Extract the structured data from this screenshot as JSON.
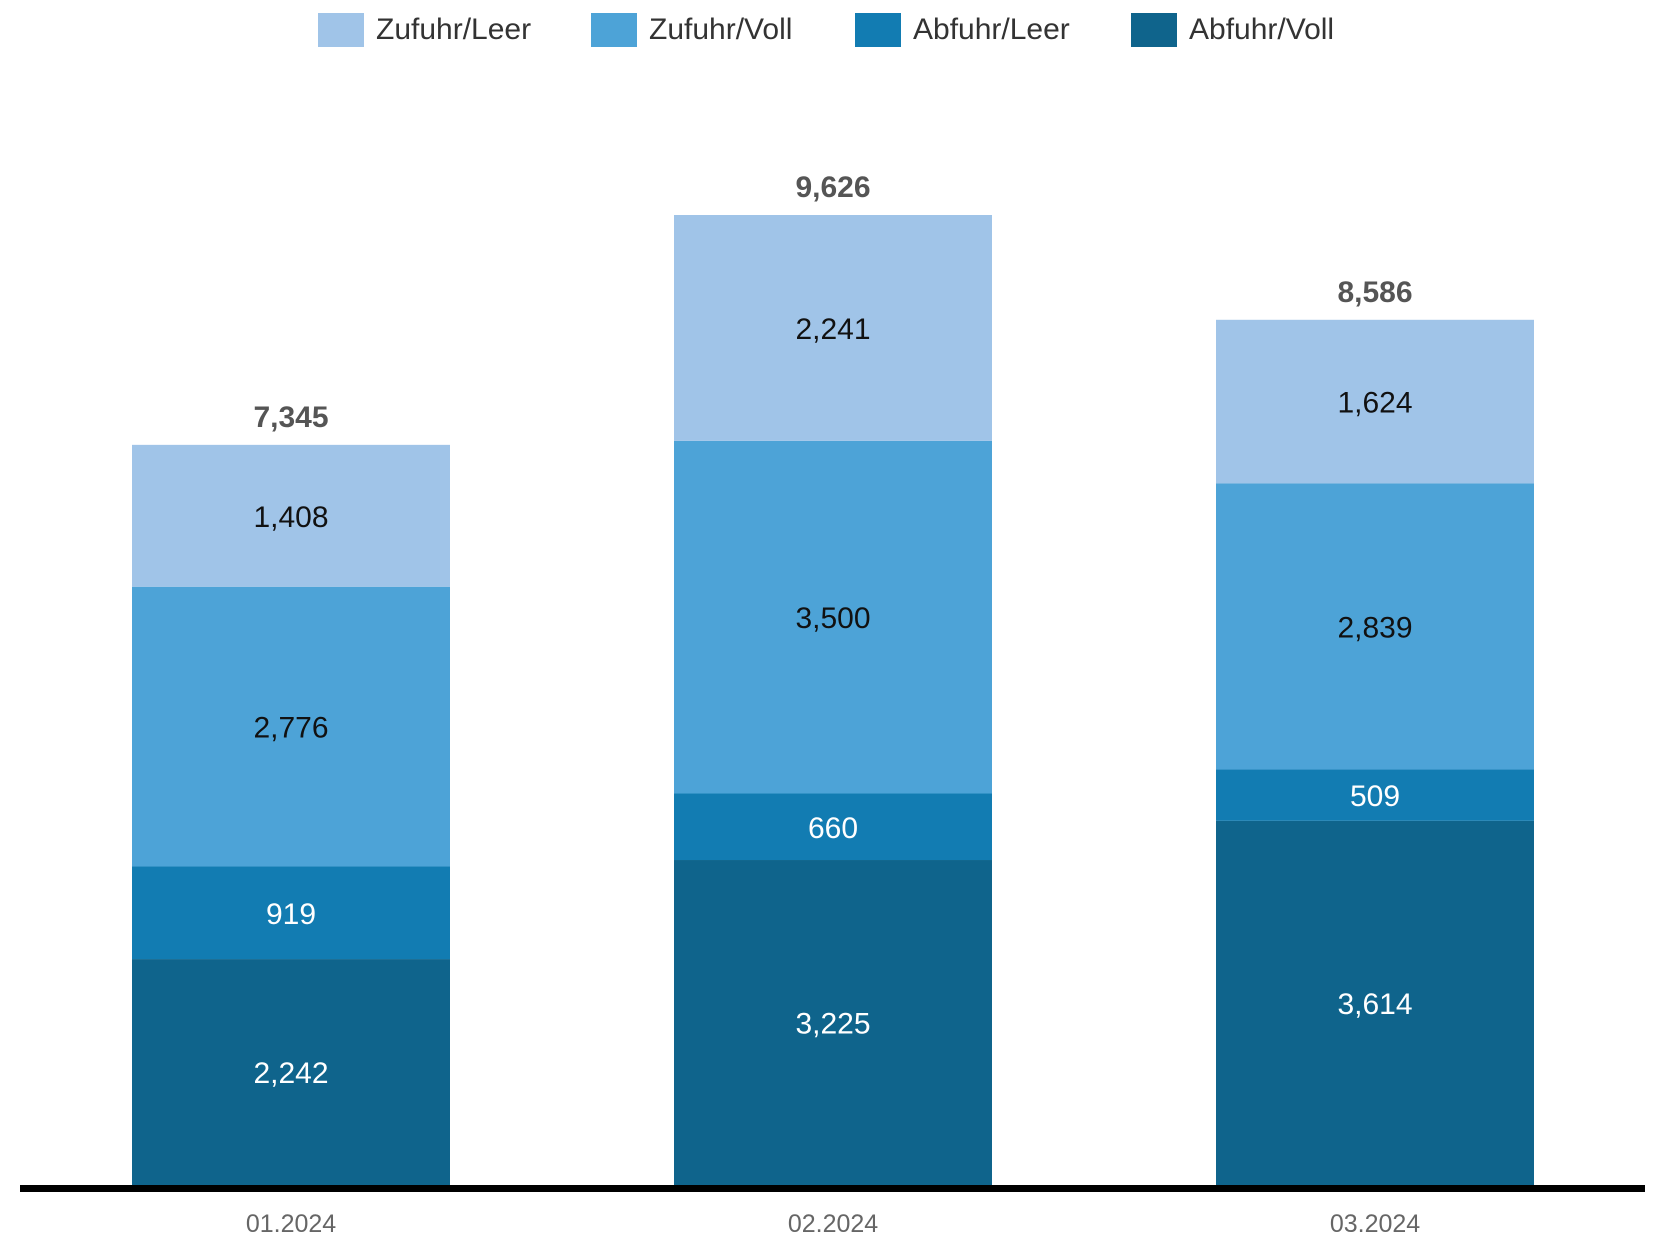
{
  "chart_data": {
    "type": "bar",
    "stacked": true,
    "categories": [
      "01.2024",
      "02.2024",
      "03.2024"
    ],
    "series": [
      {
        "name": "Abfuhr/Voll",
        "color": "#0F648C",
        "label_color": "#ffffff",
        "values": [
          2242,
          3225,
          3614
        ],
        "labels": [
          "2,242",
          "3,225",
          "3,614"
        ]
      },
      {
        "name": "Abfuhr/Leer",
        "color": "#127CB2",
        "label_color": "#ffffff",
        "values": [
          919,
          660,
          509
        ],
        "labels": [
          "919",
          "660",
          "509"
        ]
      },
      {
        "name": "Zufuhr/Voll",
        "color": "#4DA3D7",
        "label_color": "#111111",
        "values": [
          2776,
          3500,
          2839
        ],
        "labels": [
          "2,776",
          "3,500",
          "2,839"
        ]
      },
      {
        "name": "Zufuhr/Leer",
        "color": "#A0C4E8",
        "label_color": "#111111",
        "values": [
          1408,
          2241,
          1624
        ],
        "labels": [
          "1,408",
          "2,241",
          "1,624"
        ]
      }
    ],
    "totals": [
      7345,
      9626,
      8586
    ],
    "total_labels": [
      "7,345",
      "9,626",
      "8,586"
    ],
    "legend_order": [
      "Zufuhr/Leer",
      "Zufuhr/Voll",
      "Abfuhr/Leer",
      "Abfuhr/Voll"
    ],
    "legend_position": "top",
    "ylim": [
      0,
      9626
    ],
    "grid": false,
    "title": "",
    "xlabel": "",
    "ylabel": ""
  }
}
